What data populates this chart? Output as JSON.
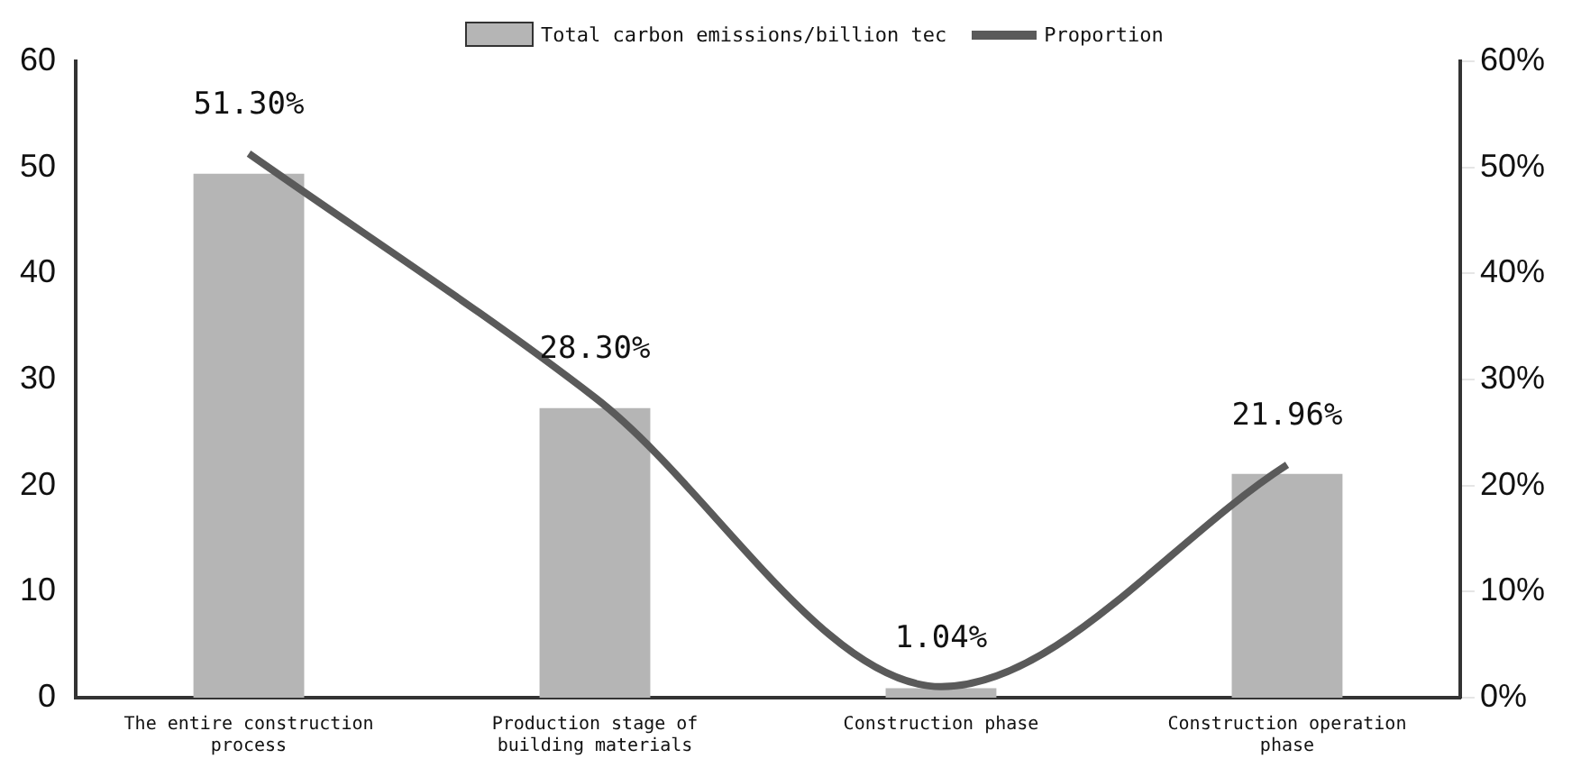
{
  "chart_data": {
    "type": "bar",
    "categories": [
      "The entire construction process",
      "Production stage of building materials",
      "Construction phase",
      "Construction operation phase"
    ],
    "series": [
      {
        "name": "Total carbon emissions/billion tec",
        "color": "#b5b5b5",
        "values": [
          49.4,
          27.3,
          0.9,
          21.1
        ]
      },
      {
        "name": "Proportion",
        "type": "line",
        "axis": "y2",
        "color": "#5a5a5a",
        "values": [
          51.3,
          28.3,
          1.04,
          21.96
        ],
        "value_labels": [
          "51.30%",
          "28.30%",
          "1.04%",
          "21.96%"
        ]
      }
    ],
    "ylim": [
      0,
      60
    ],
    "yticks": [
      0,
      10,
      20,
      30,
      40,
      50,
      60
    ],
    "y2lim": [
      0,
      60
    ],
    "y2ticks": [
      {
        "value": 0,
        "label": "0%"
      },
      {
        "value": 10,
        "label": "10%"
      },
      {
        "value": 20,
        "label": "20%"
      },
      {
        "value": 30,
        "label": "30%"
      },
      {
        "value": 40,
        "label": "40%"
      },
      {
        "value": 50,
        "label": "50%"
      },
      {
        "value": 60,
        "label": "60%"
      }
    ],
    "grid": false,
    "legend": "top",
    "marker": "none",
    "line_style": "solid"
  }
}
